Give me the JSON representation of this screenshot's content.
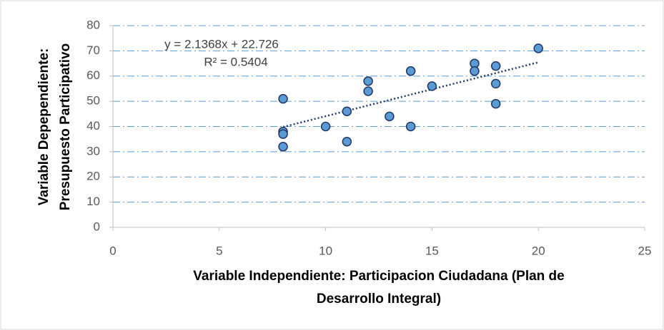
{
  "chart_data": {
    "type": "scatter",
    "x_label": [
      "Variable Independiente: Participacion Ciudadana (Plan de",
      "Desarrollo Integral)"
    ],
    "y_label": [
      "Variable Depependiente:",
      "Presupuesto Participativo"
    ],
    "series": [
      {
        "color": "#5b9bd5",
        "x": [
          8,
          8,
          8,
          8,
          10,
          11,
          11,
          12,
          12,
          13,
          14,
          14,
          15,
          17,
          17,
          18,
          18,
          18,
          20
        ],
        "values": [
          51,
          38,
          37,
          32,
          40,
          46,
          34,
          58,
          54,
          44,
          62,
          40,
          56,
          65,
          62,
          64,
          57,
          49,
          71
        ]
      }
    ],
    "trendline": {
      "slope": 2.1368,
      "intercept": 22.726,
      "color": "#1f3864",
      "equation": "y = 2.1368x + 22.726",
      "r_squared_label": "R² = 0.5404"
    },
    "xlim": [
      0,
      25
    ],
    "xticks": [
      0,
      5,
      10,
      15,
      20,
      25
    ],
    "ylim": [
      0,
      80
    ],
    "yticks": [
      0,
      10,
      20,
      30,
      40,
      50,
      60,
      70,
      80
    ],
    "grid": true,
    "grid_color": "#5b9bd5"
  }
}
